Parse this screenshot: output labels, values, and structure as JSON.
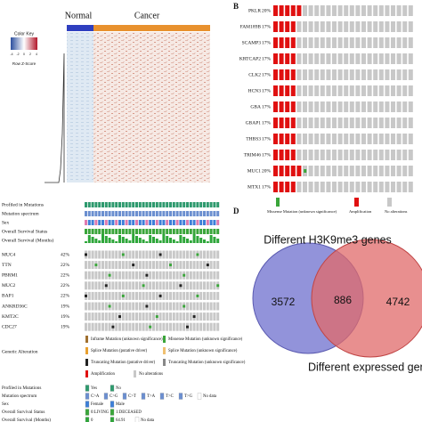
{
  "panel_a": {
    "color_key": "Color Key",
    "key_ticks": [
      "-4",
      "-2",
      "0",
      "2",
      "4"
    ],
    "key_axis": "Row Z-Score",
    "groups": [
      "Normal",
      "Cancer"
    ]
  },
  "panel_b": {
    "label": "B",
    "genes": [
      {
        "name": "PKLR",
        "pct": "20%"
      },
      {
        "name": "FAM189B",
        "pct": "17%"
      },
      {
        "name": "SCAMP3",
        "pct": "17%"
      },
      {
        "name": "KRTCAP2",
        "pct": "17%"
      },
      {
        "name": "CLK2",
        "pct": "17%"
      },
      {
        "name": "HCN3",
        "pct": "17%"
      },
      {
        "name": "GBA",
        "pct": "17%"
      },
      {
        "name": "GBAP1",
        "pct": "17%"
      },
      {
        "name": "THBS3",
        "pct": "17%"
      },
      {
        "name": "TRIM46",
        "pct": "17%"
      },
      {
        "name": "MUC1",
        "pct": "20%"
      },
      {
        "name": "MTX1",
        "pct": "17%"
      }
    ],
    "legend": [
      "Missense Mutation (unknown significance)",
      "Amplification",
      "No alterations"
    ]
  },
  "panel_c": {
    "tracks": [
      "Profiled in Mutations",
      "Mutation spectrum",
      "Sex",
      "Overall Survival Status",
      "Overall Survival (Months)"
    ],
    "genes": [
      {
        "name": "MUC4",
        "pct": "42%"
      },
      {
        "name": "TTN",
        "pct": "22%"
      },
      {
        "name": "PBRM1",
        "pct": "22%"
      },
      {
        "name": "MUC2",
        "pct": "22%"
      },
      {
        "name": "BAP1",
        "pct": "22%"
      },
      {
        "name": "ANKRD36C",
        "pct": "19%"
      },
      {
        "name": "KMT2C",
        "pct": "19%"
      },
      {
        "name": "CDC27",
        "pct": "19%"
      }
    ],
    "genetic_alteration": "Genetic Alteration",
    "alteration_legend": [
      "Inframe Mutation (unknown significance)",
      "Missense Mutation (unknown significance)",
      "Splice Mutation (putative driver)",
      "Splice Mutation (unknown significance)",
      "Truncating Mutation (putative driver)",
      "Truncating Mutation (unknown significance)",
      "Amplification",
      "No alterations"
    ],
    "track_legends": [
      {
        "title": "Profiled in Mutations",
        "items": [
          "Yes",
          "No"
        ]
      },
      {
        "title": "Mutation spectrum",
        "items": [
          "C>A",
          "C>G",
          "C>T",
          "T>A",
          "T>C",
          "T>G",
          "No data"
        ]
      },
      {
        "title": "Sex",
        "items": [
          "Female",
          "Male"
        ]
      },
      {
        "title": "Overall Survival Status",
        "items": [
          "0:LIVING",
          "1:DECEASED"
        ]
      },
      {
        "title": "Overall Survival (Months)",
        "items": [
          "0",
          "64.91",
          "No data"
        ]
      }
    ]
  },
  "panel_d": {
    "label": "D",
    "set_a": "Different H3K9me3 genes",
    "set_b": "Different expressed genes",
    "only_a": "3572",
    "both": "886",
    "only_b": "4742"
  }
}
